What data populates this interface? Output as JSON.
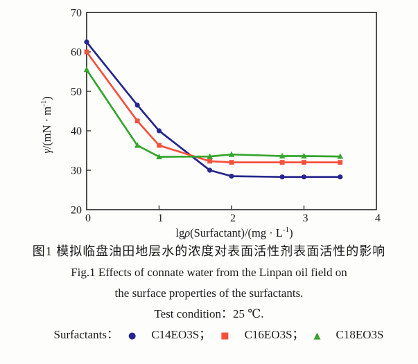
{
  "figure": {
    "caption_cn": "图1  模拟临盘油田地层水的浓度对表面活性剂表面活性的影响",
    "caption_en_line1": "Fig.1   Effects of connate water from the Linpan oil field on",
    "caption_en_line2": "the surface properties of the surfactants.",
    "test_condition": "Test condition：25 ℃.",
    "legend_prefix": "Surfactants：",
    "legend": [
      {
        "label": "C14EO3S；",
        "marker": "circle-icon",
        "glyph": "●",
        "color": "#26268e"
      },
      {
        "label": "C16EO3S；",
        "marker": "square-icon",
        "glyph": "■",
        "color": "#f4513d"
      },
      {
        "label": "C18EO3S",
        "marker": "triangle-icon",
        "glyph": "▲",
        "color": "#34a52c"
      }
    ]
  },
  "chart_data": {
    "type": "line",
    "title": "",
    "xlabel": "lgρ(Surfactant)/(mg · L⁻¹)",
    "ylabel": "γ/(mN · m⁻¹)",
    "xlabel_parts": [
      {
        "t": "lg"
      },
      {
        "t": "ρ",
        "i": true
      },
      {
        "t": "(Surfactant)/(mg · L"
      },
      {
        "t": "-1",
        "sup": true
      },
      {
        "t": ")"
      }
    ],
    "ylabel_parts": [
      {
        "t": "γ",
        "i": true
      },
      {
        "t": "/(mN · m"
      },
      {
        "t": "-1",
        "sup": true
      },
      {
        "t": ")"
      }
    ],
    "xlim": [
      0,
      4
    ],
    "ylim": [
      20,
      70
    ],
    "x_ticks": [
      0,
      1,
      2,
      3,
      4
    ],
    "y_ticks": [
      20,
      30,
      40,
      50,
      60,
      70
    ],
    "grid": false,
    "legend_position": "below-caption",
    "axis_color": "#2f2f2f",
    "x": [
      0,
      0.7,
      1,
      1.7,
      2,
      2.7,
      3,
      3.5
    ],
    "series": [
      {
        "name": "C14EO3S",
        "marker": "circle",
        "color": "#26268e",
        "values": [
          62.5,
          46.5,
          40.0,
          30.0,
          28.5,
          28.3,
          28.3,
          28.3
        ]
      },
      {
        "name": "C16EO3S",
        "marker": "square",
        "color": "#f4513d",
        "values": [
          60.0,
          42.5,
          36.3,
          32.3,
          32.0,
          32.0,
          32.0,
          32.0
        ]
      },
      {
        "name": "C18EO3S",
        "marker": "triangle",
        "color": "#34a52c",
        "values": [
          55.5,
          36.3,
          33.4,
          33.5,
          34.0,
          33.6,
          33.6,
          33.5
        ]
      }
    ]
  }
}
